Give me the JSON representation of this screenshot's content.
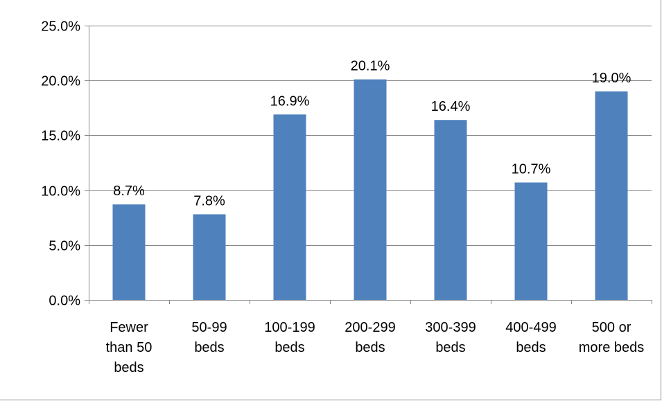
{
  "chart_data": {
    "type": "bar",
    "categories": [
      [
        "Fewer",
        "than 50",
        "beds"
      ],
      [
        "50-99",
        "beds"
      ],
      [
        "100-199",
        "beds"
      ],
      [
        "200-299",
        "beds"
      ],
      [
        "300-399",
        "beds"
      ],
      [
        "400-499",
        "beds"
      ],
      [
        "500 or",
        "more beds"
      ]
    ],
    "values": [
      8.7,
      7.8,
      16.9,
      20.1,
      16.4,
      10.7,
      19.0
    ],
    "data_labels": [
      "8.7%",
      "7.8%",
      "16.9%",
      "20.1%",
      "16.4%",
      "10.7%",
      "19.0%"
    ],
    "yticks": [
      "0.0%",
      "5.0%",
      "10.0%",
      "15.0%",
      "20.0%",
      "25.0%"
    ],
    "ylim": [
      0,
      25
    ],
    "grid": true,
    "bar_color": "#4F81BD",
    "grid_color": "#868686"
  }
}
